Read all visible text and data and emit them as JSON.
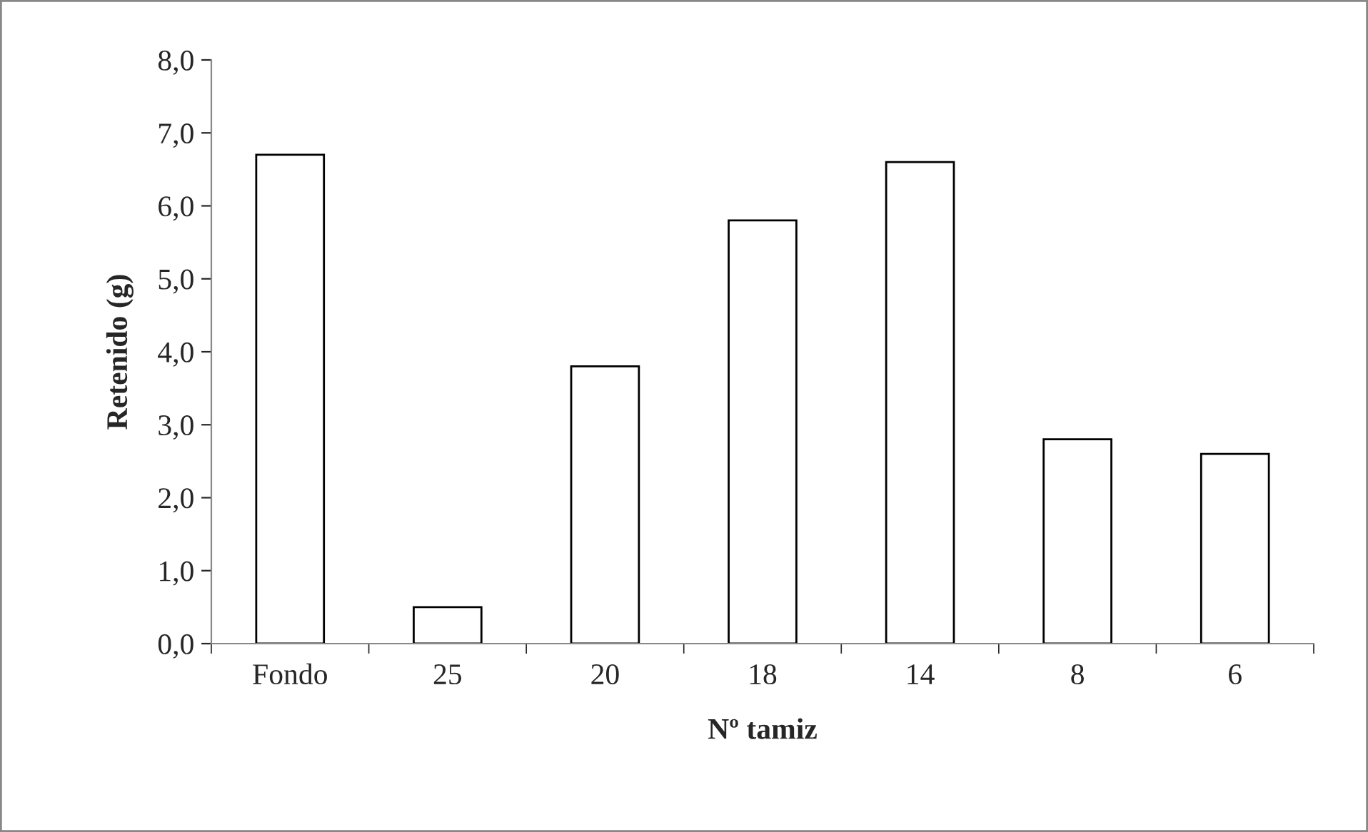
{
  "chart_data": {
    "type": "bar",
    "xlabel": "Nº tamiz",
    "ylabel": "Retenido (g)",
    "categories": [
      "Fondo",
      "25",
      "20",
      "18",
      "14",
      "8",
      "6"
    ],
    "series": [
      {
        "color": "#ffffff",
        "values": [
          6.7,
          0.5,
          3.8,
          5.8,
          6.6,
          2.8,
          2.6
        ]
      }
    ],
    "ylim": [
      0,
      8
    ],
    "yticks": [
      {
        "value": 0,
        "label": "0,0"
      },
      {
        "value": 1,
        "label": "1,0"
      },
      {
        "value": 2,
        "label": "2,0"
      },
      {
        "value": 3,
        "label": "3,0"
      },
      {
        "value": 4,
        "label": "4,0"
      },
      {
        "value": 5,
        "label": "5,0"
      },
      {
        "value": 6,
        "label": "6,0"
      },
      {
        "value": 7,
        "label": "7,0"
      },
      {
        "value": 8,
        "label": "8,0"
      }
    ],
    "grid": false,
    "legend": false
  }
}
